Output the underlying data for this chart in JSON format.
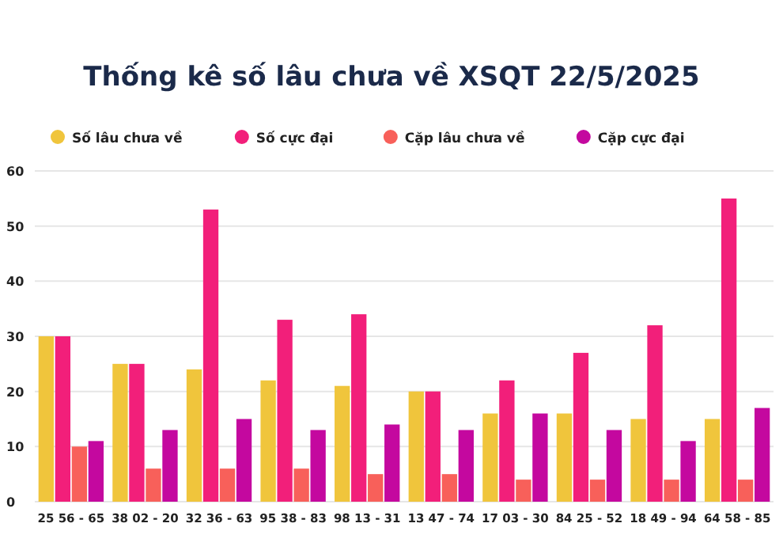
{
  "chart_data": {
    "type": "bar",
    "title": "Thống kê số lâu chưa về XSQT 22/5/2025",
    "categories": [
      "25 56 - 65",
      "38 02 - 20",
      "32 36 - 63",
      "95 38 - 83",
      "98 13 - 31",
      "13 47 - 74",
      "17 03 - 30",
      "84 25 - 52",
      "18 49 - 94",
      "64 58 - 85"
    ],
    "series": [
      {
        "name": "Số lâu chưa về",
        "color": "#f0c53c",
        "values": [
          30,
          25,
          24,
          22,
          21,
          20,
          16,
          16,
          15,
          15
        ]
      },
      {
        "name": "Số cực đại",
        "color": "#f21f7a",
        "values": [
          30,
          25,
          53,
          33,
          34,
          20,
          22,
          27,
          32,
          55
        ]
      },
      {
        "name": "Cặp lâu chưa về",
        "color": "#f8605a",
        "values": [
          10,
          6,
          6,
          6,
          5,
          5,
          4,
          4,
          4,
          4
        ]
      },
      {
        "name": "Cặp cực đại",
        "color": "#c4089f",
        "values": [
          11,
          13,
          15,
          13,
          14,
          13,
          16,
          13,
          11,
          17
        ]
      }
    ],
    "ylim": [
      0,
      60
    ],
    "yticks": [
      0,
      10,
      20,
      30,
      40,
      50,
      60
    ],
    "grid": "y",
    "legend": "top"
  }
}
